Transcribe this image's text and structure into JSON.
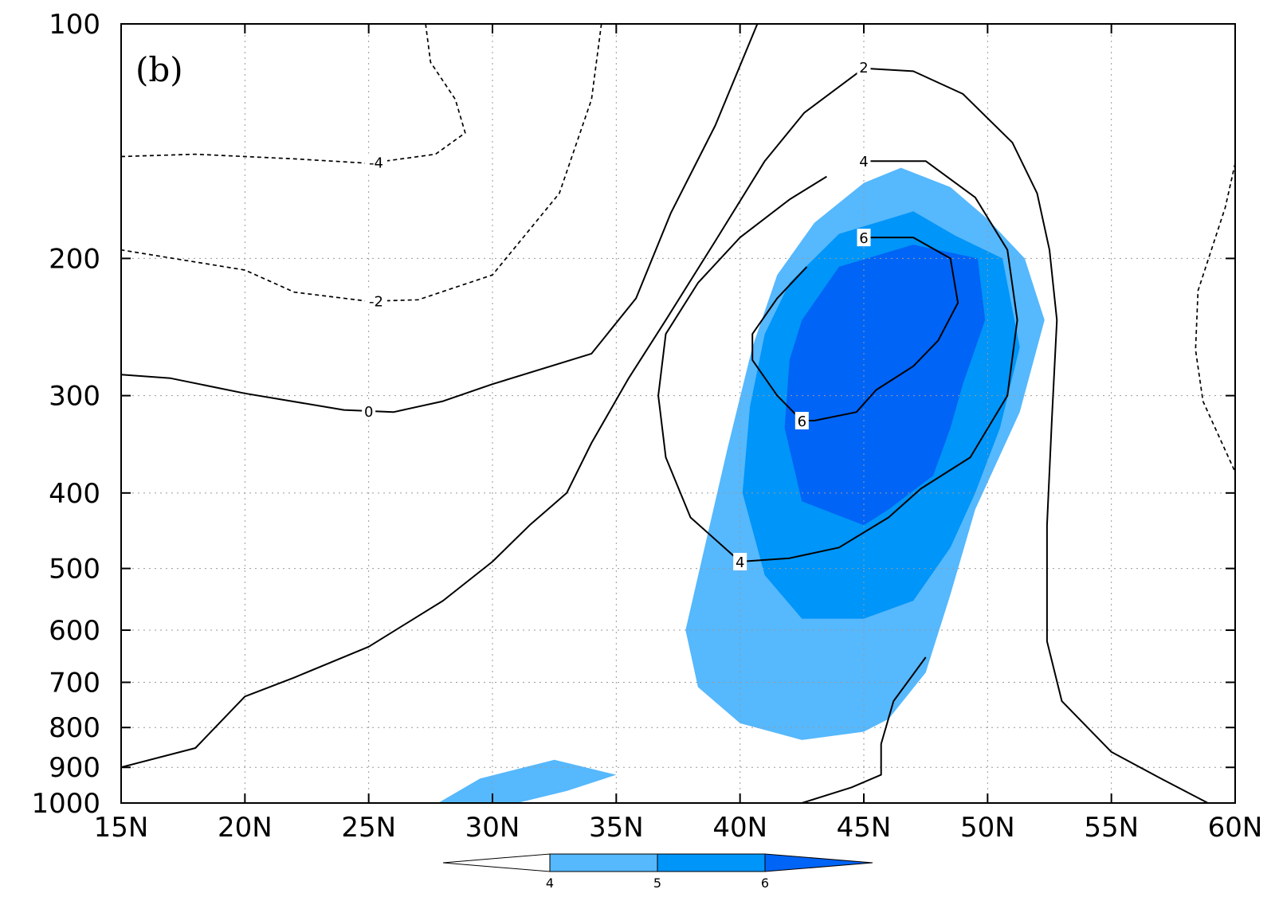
{
  "chart_data": {
    "type": "contour",
    "panel_label": "(b)",
    "x_axis": {
      "range": [
        15,
        60
      ],
      "ticks": [
        15,
        20,
        25,
        30,
        35,
        40,
        45,
        50,
        55,
        60
      ],
      "tick_labels": [
        "15N",
        "20N",
        "25N",
        "30N",
        "35N",
        "40N",
        "45N",
        "50N",
        "55N",
        "60N"
      ]
    },
    "y_axis": {
      "scale": "log",
      "inverted": true,
      "range": [
        1000,
        100
      ],
      "ticks": [
        100,
        200,
        300,
        400,
        500,
        600,
        700,
        800,
        900,
        1000
      ],
      "tick_labels": [
        "100",
        "200",
        "300",
        "400",
        "500",
        "600",
        "700",
        "800",
        "900",
        "1000"
      ]
    },
    "grid": true,
    "shading": {
      "levels": [
        4,
        5,
        6
      ],
      "colors": [
        "#ffffff",
        "#56b8fd",
        "#0095f8",
        "#0064f6"
      ],
      "colorbar_labels": [
        "4",
        "5",
        "6"
      ],
      "regions": [
        {
          "level": 4,
          "points": [
            [
              46.5,
              153
            ],
            [
              48.5,
              162
            ],
            [
              50,
              178
            ],
            [
              51.5,
              200
            ],
            [
              52.3,
              240
            ],
            [
              51.3,
              315
            ],
            [
              49.5,
              420
            ],
            [
              48.5,
              540
            ],
            [
              47.5,
              680
            ],
            [
              46,
              780
            ],
            [
              45,
              810
            ],
            [
              42.5,
              830
            ],
            [
              40,
              790
            ],
            [
              38.3,
              710
            ],
            [
              37.8,
              600
            ],
            [
              38.5,
              480
            ],
            [
              39.5,
              350
            ],
            [
              40.5,
              260
            ],
            [
              41.5,
              210
            ],
            [
              43,
              180
            ],
            [
              45,
              160
            ]
          ]
        },
        {
          "level": 4,
          "points": [
            [
              27.8,
              1000
            ],
            [
              29.5,
              930
            ],
            [
              32.5,
              880
            ],
            [
              35,
              920
            ],
            [
              33,
              965
            ],
            [
              31,
              1000
            ]
          ]
        },
        {
          "level": 5,
          "points": [
            [
              47,
              174
            ],
            [
              48.7,
              187
            ],
            [
              50.6,
              200
            ],
            [
              51.3,
              260
            ],
            [
              50.5,
              330
            ],
            [
              49.5,
              400
            ],
            [
              48.5,
              470
            ],
            [
              47,
              550
            ],
            [
              45,
              580
            ],
            [
              42.5,
              580
            ],
            [
              41,
              510
            ],
            [
              40.1,
              400
            ],
            [
              40.4,
              310
            ],
            [
              41,
              250
            ],
            [
              42,
              215
            ],
            [
              44,
              186
            ]
          ]
        },
        {
          "level": 6,
          "points": [
            [
              47,
              192
            ],
            [
              49.6,
              200
            ],
            [
              49.9,
              240
            ],
            [
              49,
              290
            ],
            [
              48.5,
              330
            ],
            [
              47.8,
              380
            ],
            [
              46,
              420
            ],
            [
              45,
              440
            ],
            [
              42.5,
              410
            ],
            [
              41.8,
              330
            ],
            [
              42,
              270
            ],
            [
              42.5,
              240
            ],
            [
              44,
              205
            ]
          ]
        }
      ]
    },
    "contours": [
      {
        "label": "-4",
        "style": "dashed",
        "points": [
          [
            27.3,
            100
          ],
          [
            27.5,
            112
          ],
          [
            28.5,
            125
          ],
          [
            28.9,
            138
          ],
          [
            27.7,
            147
          ],
          [
            25,
            151
          ],
          [
            22,
            149
          ],
          [
            18,
            147
          ],
          [
            15,
            148
          ]
        ]
      },
      {
        "label": "-2",
        "style": "dashed",
        "points": [
          [
            34.4,
            100
          ],
          [
            34,
            125
          ],
          [
            32.7,
            165
          ],
          [
            30,
            210
          ],
          [
            27,
            226
          ],
          [
            25,
            227
          ],
          [
            22,
            221
          ],
          [
            20,
            207
          ],
          [
            15,
            195
          ]
        ]
      },
      {
        "label": "0",
        "style": "solid",
        "points": [
          [
            40.7,
            100
          ],
          [
            39,
            135
          ],
          [
            37.2,
            175
          ],
          [
            35.8,
            225
          ],
          [
            34,
            265
          ],
          [
            30,
            290
          ],
          [
            28,
            305
          ],
          [
            26,
            315
          ],
          [
            24,
            313
          ],
          [
            20,
            298
          ],
          [
            17,
            285
          ],
          [
            15,
            282
          ]
        ]
      },
      {
        "label": "2",
        "style": "solid",
        "points": [
          [
            15,
            900
          ],
          [
            18,
            850
          ],
          [
            20,
            730
          ],
          [
            22,
            690
          ],
          [
            25,
            630
          ],
          [
            28,
            550
          ],
          [
            30,
            490
          ],
          [
            31.5,
            440
          ],
          [
            33,
            400
          ],
          [
            34,
            345
          ],
          [
            35.5,
            285
          ],
          [
            37,
            240
          ],
          [
            39,
            190
          ],
          [
            41,
            150
          ],
          [
            42.6,
            130
          ],
          [
            45,
            114
          ],
          [
            47,
            115
          ],
          [
            49,
            123
          ],
          [
            51,
            142
          ],
          [
            52,
            165
          ],
          [
            52.5,
            195
          ],
          [
            52.8,
            240
          ],
          [
            52.6,
            320
          ],
          [
            52.4,
            440
          ],
          [
            52.4,
            620
          ],
          [
            53,
            740
          ],
          [
            55,
            860
          ],
          [
            57,
            930
          ],
          [
            58.9,
            1000
          ]
        ]
      },
      {
        "label": "4",
        "style": "solid",
        "points": [
          [
            45,
            150
          ],
          [
            47.5,
            150
          ],
          [
            49.5,
            167
          ],
          [
            50.8,
            195
          ],
          [
            51.2,
            240
          ],
          [
            50.8,
            300
          ],
          [
            49.3,
            360
          ],
          [
            47.3,
            395
          ],
          [
            46,
            430
          ],
          [
            44,
            470
          ],
          [
            42,
            485
          ],
          [
            40,
            490
          ],
          [
            38,
            430
          ],
          [
            37,
            360
          ],
          [
            36.7,
            300
          ],
          [
            37,
            250
          ],
          [
            38.3,
            215
          ],
          [
            40,
            188
          ],
          [
            42,
            168
          ],
          [
            43.5,
            157
          ]
        ]
      },
      {
        "label": "6",
        "style": "solid",
        "points": [
          [
            45,
            188
          ],
          [
            47,
            188
          ],
          [
            48.5,
            200
          ],
          [
            48.8,
            228
          ],
          [
            48,
            255
          ],
          [
            47,
            275
          ],
          [
            45.5,
            295
          ],
          [
            44.7,
            315
          ],
          [
            43,
            323
          ],
          [
            42.5,
            323
          ],
          [
            41.5,
            300
          ],
          [
            40.5,
            270
          ],
          [
            40.5,
            250
          ],
          [
            41.5,
            225
          ],
          [
            42.7,
            205
          ]
        ]
      },
      {
        "label": "",
        "style": "solid",
        "points": [
          [
            42.5,
            1000
          ],
          [
            44.5,
            955
          ],
          [
            45.7,
            920
          ],
          [
            45.7,
            840
          ],
          [
            46.2,
            740
          ],
          [
            47.5,
            650
          ]
        ]
      },
      {
        "label": "",
        "style": "dashed",
        "points": [
          [
            60,
            151
          ],
          [
            59.6,
            172
          ],
          [
            58.5,
            220
          ],
          [
            58.4,
            262
          ],
          [
            58.7,
            305
          ],
          [
            60,
            376
          ]
        ]
      }
    ],
    "contour_label_positions": [
      {
        "text": "-4",
        "at": [
          25.3,
          150.5
        ]
      },
      {
        "text": "-2",
        "at": [
          25.3,
          226.5
        ]
      },
      {
        "text": "0",
        "at": [
          25,
          314
        ]
      },
      {
        "text": "2",
        "at": [
          45,
          113.5
        ]
      },
      {
        "text": "4",
        "at": [
          45,
          150
        ]
      },
      {
        "text": "4",
        "at": [
          40,
          490
        ]
      },
      {
        "text": "6",
        "at": [
          45,
          188
        ]
      },
      {
        "text": "6",
        "at": [
          42.5,
          323
        ]
      }
    ]
  }
}
